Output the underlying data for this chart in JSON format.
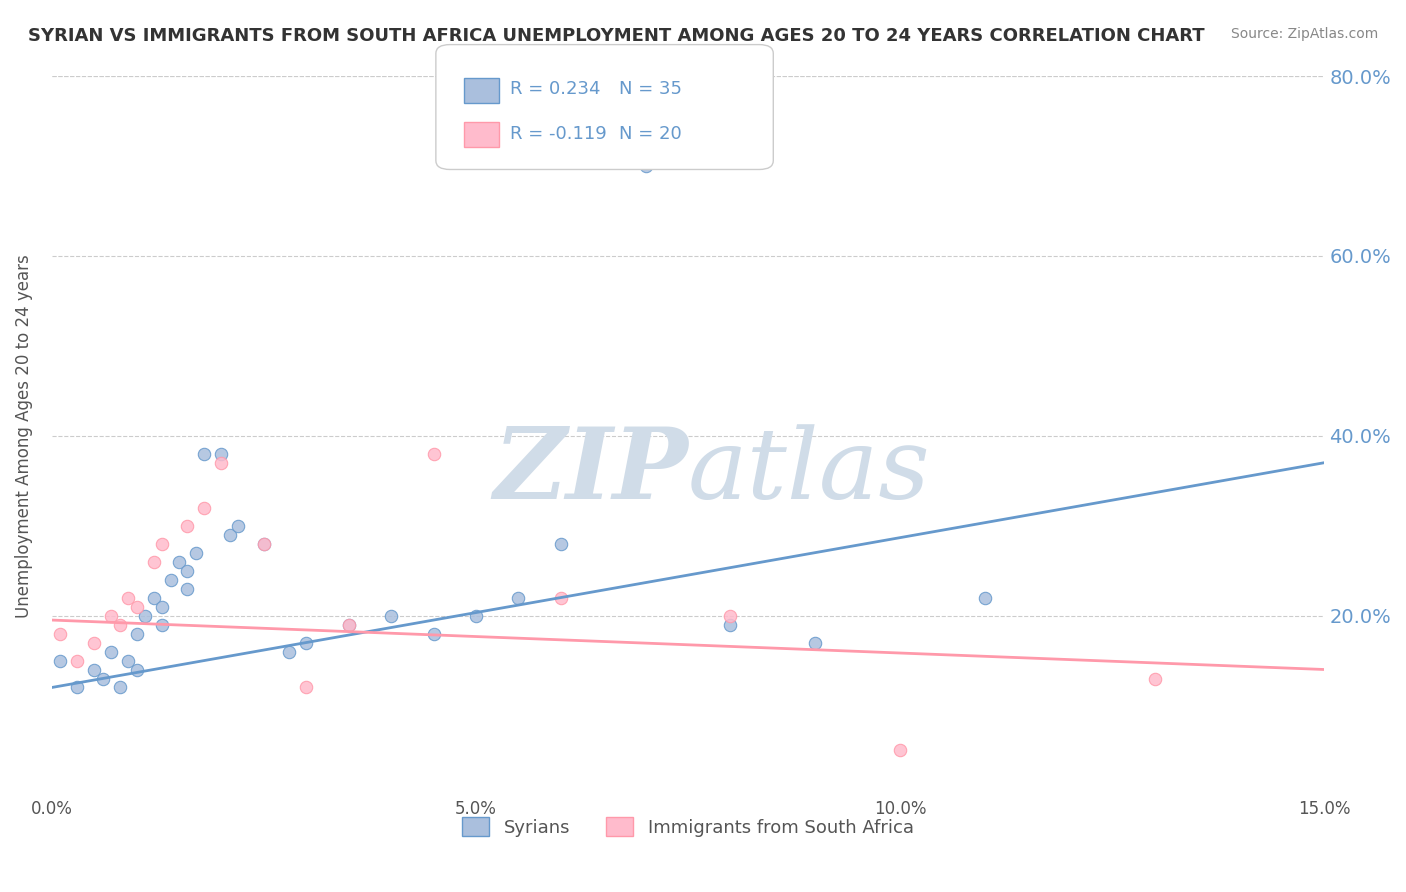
{
  "title": "SYRIAN VS IMMIGRANTS FROM SOUTH AFRICA UNEMPLOYMENT AMONG AGES 20 TO 24 YEARS CORRELATION CHART",
  "source_text": "Source: ZipAtlas.com",
  "xlabel": "",
  "ylabel": "Unemployment Among Ages 20 to 24 years",
  "xlim": [
    0.0,
    0.15
  ],
  "ylim": [
    0.0,
    0.8
  ],
  "xtick_labels": [
    "0.0%",
    "5.0%",
    "10.0%",
    "15.0%"
  ],
  "xtick_vals": [
    0.0,
    0.05,
    0.1,
    0.15
  ],
  "ytick_labels": [
    "20.0%",
    "40.0%",
    "60.0%",
    "80.0%"
  ],
  "ytick_vals": [
    0.2,
    0.4,
    0.6,
    0.8
  ],
  "legend_labels": [
    "Syrians",
    "Immigrants from South Africa"
  ],
  "legend_R": [
    "R = 0.234",
    "R = -0.119"
  ],
  "legend_N": [
    "N = 35",
    "N = 20"
  ],
  "blue_color": "#6699cc",
  "pink_color": "#ff99aa",
  "blue_fill": "#aabfdd",
  "pink_fill": "#ffbbcc",
  "watermark": "ZIPatlas",
  "watermark_color": "#d0dce8",
  "background_color": "#ffffff",
  "syrian_x": [
    0.001,
    0.003,
    0.005,
    0.006,
    0.007,
    0.008,
    0.009,
    0.01,
    0.01,
    0.011,
    0.012,
    0.013,
    0.013,
    0.014,
    0.015,
    0.016,
    0.016,
    0.017,
    0.018,
    0.02,
    0.021,
    0.022,
    0.025,
    0.028,
    0.03,
    0.035,
    0.04,
    0.045,
    0.05,
    0.055,
    0.06,
    0.07,
    0.08,
    0.09,
    0.11
  ],
  "syrian_y": [
    0.15,
    0.12,
    0.14,
    0.13,
    0.16,
    0.12,
    0.15,
    0.14,
    0.18,
    0.2,
    0.22,
    0.19,
    0.21,
    0.24,
    0.26,
    0.23,
    0.25,
    0.27,
    0.38,
    0.38,
    0.29,
    0.3,
    0.28,
    0.16,
    0.17,
    0.19,
    0.2,
    0.18,
    0.2,
    0.22,
    0.28,
    0.7,
    0.19,
    0.17,
    0.22
  ],
  "sa_x": [
    0.001,
    0.003,
    0.005,
    0.007,
    0.008,
    0.009,
    0.01,
    0.012,
    0.013,
    0.016,
    0.018,
    0.02,
    0.025,
    0.03,
    0.035,
    0.045,
    0.06,
    0.08,
    0.1,
    0.13
  ],
  "sa_y": [
    0.18,
    0.15,
    0.17,
    0.2,
    0.19,
    0.22,
    0.21,
    0.26,
    0.28,
    0.3,
    0.32,
    0.37,
    0.28,
    0.12,
    0.19,
    0.38,
    0.22,
    0.2,
    0.05,
    0.13
  ],
  "blue_trend_x": [
    0.0,
    0.15
  ],
  "blue_trend_y": [
    0.12,
    0.37
  ],
  "pink_trend_x": [
    0.0,
    0.15
  ],
  "pink_trend_y": [
    0.195,
    0.14
  ]
}
